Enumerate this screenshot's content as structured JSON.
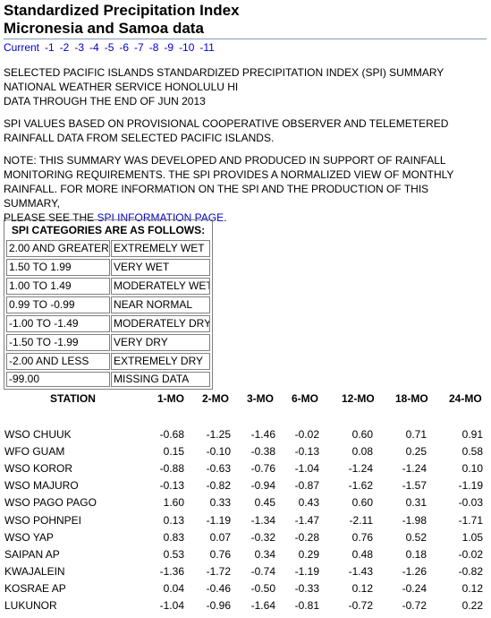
{
  "header": {
    "title_line1": "Standardized Precipitation Index",
    "title_line2": "Micronesia and Samoa data"
  },
  "nav": [
    "Current",
    "-1",
    "-2",
    "-3",
    "-4",
    "-5",
    "-6",
    "-7",
    "-8",
    "-9",
    "-10",
    "-11"
  ],
  "intro": {
    "line1": "SELECTED PACIFIC ISLANDS STANDARDIZED PRECIPITATION INDEX (SPI) SUMMARY",
    "line2": "NATIONAL WEATHER SERVICE HONOLULU HI",
    "line3": "DATA THROUGH THE END OF JUN 2013"
  },
  "provisional": {
    "line1": "SPI VALUES BASED ON PROVISIONAL COOPERATIVE OBSERVER AND TELEMETERED",
    "line2": "RAINFALL DATA FROM SELECTED PACIFIC ISLANDS."
  },
  "note": {
    "line1": "NOTE: THIS SUMMARY WAS DEVELOPED AND PRODUCED IN SUPPORT OF RAINFALL",
    "line2": "MONITORING REQUIREMENTS. THE SPI PROVIDES A NORMALIZED VIEW OF MONTHLY",
    "line3": "RAINFALL. FOR MORE INFORMATION ON THE SPI AND THE PRODUCTION OF THIS SUMMARY,",
    "line4_prefix": "PLEASE SEE THE ",
    "link": "SPI INFORMATION PAGE",
    "line4_suffix": "."
  },
  "categories": {
    "heading": "SPI CATEGORIES ARE AS FOLLOWS:",
    "rows": [
      {
        "range": "2.00 AND GREATER",
        "label": "EXTREMELY WET"
      },
      {
        "range": "1.50 TO 1.99",
        "label": "VERY WET"
      },
      {
        "range": "1.00 TO 1.49",
        "label": "MODERATELY WET"
      },
      {
        "range": "0.99 TO -0.99",
        "label": "NEAR NORMAL"
      },
      {
        "range": "-1.00 TO -1.49",
        "label": "MODERATELY DRY"
      },
      {
        "range": "-1.50 TO -1.99",
        "label": "VERY DRY"
      },
      {
        "range": "-2.00 AND LESS",
        "label": "EXTREMELY DRY"
      },
      {
        "range": "-99.00",
        "label": "MISSING DATA"
      }
    ]
  },
  "table": {
    "columns": [
      "STATION",
      "1-MO",
      "2-MO",
      "3-MO",
      "6-MO",
      "12-MO",
      "18-MO",
      "24-MO"
    ],
    "rows": [
      {
        "station": "WSO CHUUK",
        "values": [
          "-0.68",
          "-1.25",
          "-1.46",
          "-0.02",
          "0.60",
          "0.71",
          "0.91"
        ]
      },
      {
        "station": "WFO GUAM",
        "values": [
          "0.15",
          "-0.10",
          "-0.38",
          "-0.13",
          "0.08",
          "0.25",
          "0.58"
        ]
      },
      {
        "station": "WSO KOROR",
        "values": [
          "-0.88",
          "-0.63",
          "-0.76",
          "-1.04",
          "-1.24",
          "-1.24",
          "0.10"
        ]
      },
      {
        "station": "WSO MAJURO",
        "values": [
          "-0.13",
          "-0.82",
          "-0.94",
          "-0.87",
          "-1.62",
          "-1.57",
          "-1.19"
        ]
      },
      {
        "station": "WSO PAGO PAGO",
        "values": [
          "1.60",
          "0.33",
          "0.45",
          "0.43",
          "0.60",
          "0.31",
          "-0.03"
        ]
      },
      {
        "station": "WSO POHNPEI",
        "values": [
          "0.13",
          "-1.19",
          "-1.34",
          "-1.47",
          "-2.11",
          "-1.98",
          "-1.71"
        ]
      },
      {
        "station": "WSO YAP",
        "values": [
          "0.83",
          "0.07",
          "-0.32",
          "-0.28",
          "0.76",
          "0.52",
          "1.05"
        ]
      },
      {
        "station": "SAIPAN AP",
        "values": [
          "0.53",
          "0.76",
          "0.34",
          "0.29",
          "0.48",
          "0.18",
          "-0.02"
        ]
      },
      {
        "station": "KWAJALEIN",
        "values": [
          "-1.36",
          "-1.72",
          "-0.74",
          "-1.19",
          "-1.43",
          "-1.26",
          "-0.82"
        ]
      },
      {
        "station": "KOSRAE AP",
        "values": [
          "0.04",
          "-0.46",
          "-0.50",
          "-0.33",
          "0.12",
          "-0.24",
          "0.12"
        ]
      },
      {
        "station": "LUKUNOR",
        "values": [
          "-1.04",
          "-0.96",
          "-1.64",
          "-0.81",
          "-0.72",
          "-0.72",
          "0.22"
        ]
      }
    ]
  }
}
